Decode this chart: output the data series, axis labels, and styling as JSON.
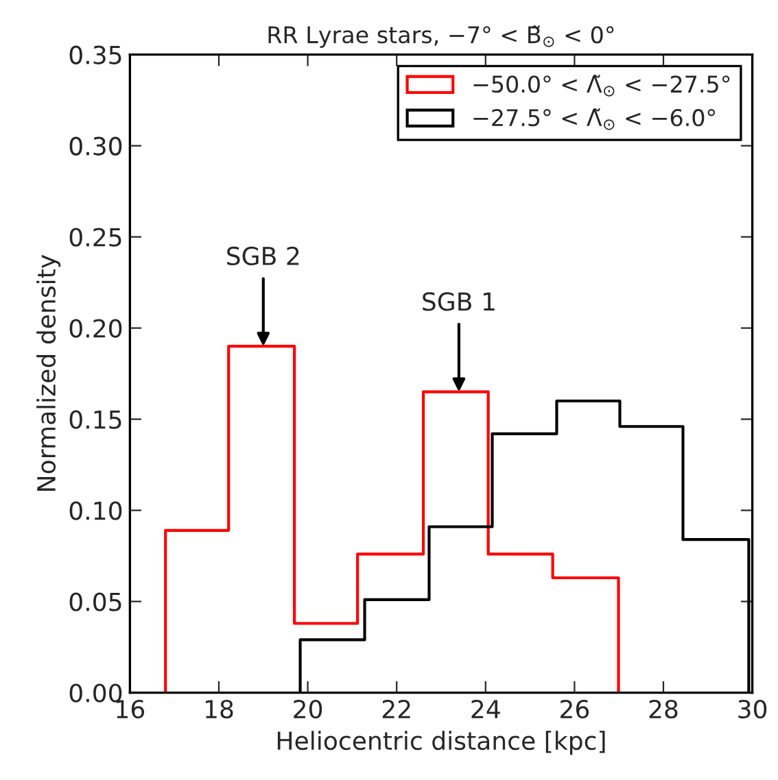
{
  "chart_data": {
    "type": "step",
    "title": "RR Lyrae stars, −7° < B̃$_{⊙}$ < 0°",
    "xlabel": "Heliocentric distance [kpc]",
    "ylabel": "Normalized density",
    "series": [
      {
        "name": "−50.0° < Λ̃$_{⊙}$ < −27.5°",
        "color": "#ff0000",
        "x": [
          16.8,
          16.8,
          18.22,
          19.7,
          21.12,
          22.6,
          24.06,
          25.51,
          26.99
        ],
        "values": [
          0,
          0.089,
          0.19,
          0.038,
          0.076,
          0.165,
          0.076,
          0.063,
          0
        ]
      },
      {
        "name": "−27.5° < Λ̃$_{⊙}$ < −6.0°",
        "color": "#000000",
        "x": [
          19.83,
          19.83,
          21.28,
          22.73,
          24.15,
          25.6,
          27.02,
          28.44,
          29.92
        ],
        "values": [
          0,
          0.029,
          0.051,
          0.091,
          0.142,
          0.16,
          0.146,
          0.084,
          0
        ]
      }
    ],
    "xlim": [
      16,
      30
    ],
    "xticks": [
      16,
      18,
      20,
      22,
      24,
      26,
      28,
      30
    ],
    "ylim": [
      0,
      0.35
    ],
    "yticks": [
      {
        "value": 0,
        "label": "0.00"
      },
      {
        "value": 0.05,
        "label": "0.05"
      },
      {
        "value": 0.1,
        "label": "0.10"
      },
      {
        "value": 0.15,
        "label": "0.15"
      },
      {
        "value": 0.2,
        "label": "0.20"
      },
      {
        "value": 0.25,
        "label": "0.25"
      },
      {
        "value": 0.3,
        "label": "0.30"
      },
      {
        "value": 0.35,
        "label": "0.35"
      }
    ],
    "annotations": [
      {
        "text": "SGB 2",
        "x": 19.0,
        "y": 0.19
      },
      {
        "text": "SGB 1",
        "x": 23.4,
        "y": 0.165
      }
    ],
    "legend": "top right",
    "grid": false
  }
}
